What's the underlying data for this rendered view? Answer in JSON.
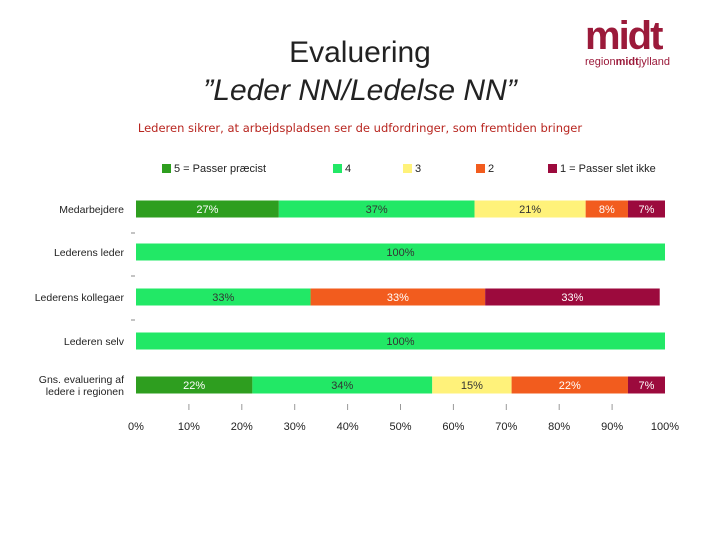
{
  "header": {
    "title_line1": "Evaluering",
    "title_line2": "”Leder NN/Ledelse NN”"
  },
  "logo": {
    "main": "midt",
    "sub_prefix": "region",
    "sub_bold": "midt",
    "sub_suffix": "jylland"
  },
  "colors": {
    "brand": "#9b1a3a",
    "subtitle": "#b8251f"
  },
  "chart_data": {
    "type": "bar",
    "orientation": "horizontal",
    "stacked": "percent",
    "title": "Lederen sikrer, at arbejdspladsen ser de udfordringer, som fremtiden bringer",
    "categories": [
      "Medarbejdere",
      "Lederens leder",
      "Lederens kollegaer",
      "Lederen selv",
      "Gns. evaluering af ledere i regionen"
    ],
    "series": [
      {
        "name": "5 = Passer præcist",
        "color": "#2e9e1f",
        "values": [
          27,
          0,
          0,
          0,
          22
        ]
      },
      {
        "name": "4",
        "color": "#22e866",
        "values": [
          37,
          100,
          33,
          100,
          34
        ]
      },
      {
        "name": "3",
        "color": "#fff27a",
        "values": [
          21,
          0,
          0,
          0,
          15
        ]
      },
      {
        "name": "2",
        "color": "#f25c1e",
        "values": [
          8,
          0,
          33,
          0,
          22
        ]
      },
      {
        "name": "1 = Passer slet ikke",
        "color": "#9c0a3d",
        "values": [
          7,
          0,
          33,
          0,
          7
        ]
      }
    ],
    "data_labels": [
      [
        "27%",
        "37%",
        "21%",
        "8%",
        "7%"
      ],
      [
        "",
        "100%",
        "",
        "",
        ""
      ],
      [
        "",
        "33%",
        "",
        "33%",
        "33%"
      ],
      [
        "",
        "100%",
        "",
        "",
        ""
      ],
      [
        "22%",
        "34%",
        "15%",
        "22%",
        "7%"
      ]
    ],
    "x_ticks": [
      "0%",
      "10%",
      "20%",
      "30%",
      "40%",
      "50%",
      "60%",
      "70%",
      "80%",
      "90%",
      "100%"
    ],
    "xlim": [
      0,
      100
    ],
    "legend_position": "top",
    "grid": false
  }
}
